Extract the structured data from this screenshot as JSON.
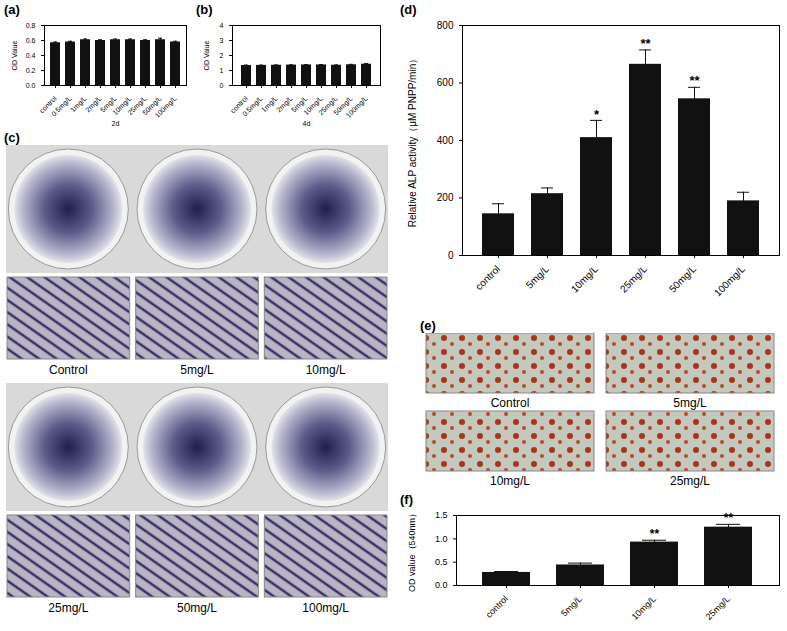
{
  "chart_data": [
    {
      "type": "bar",
      "title": "(a)",
      "xlabel": "2d",
      "ylabel": "OD Value",
      "categories": [
        "control",
        "0.5mg/L",
        "1mg/L",
        "2mg/L",
        "5mg/L",
        "10mg/L",
        "25mg/L",
        "50mg/L",
        "100mg/L"
      ],
      "values": [
        0.57,
        0.58,
        0.61,
        0.6,
        0.61,
        0.61,
        0.6,
        0.61,
        0.58
      ],
      "errors": [
        0.01,
        0.01,
        0.01,
        0.01,
        0.01,
        0.01,
        0.01,
        0.02,
        0.01
      ],
      "color": "#111111",
      "ylim": [
        0,
        0.8
      ],
      "yticks": [
        {
          "value": 0,
          "label": "0.0"
        },
        {
          "value": 0.2,
          "label": "0.2"
        },
        {
          "value": 0.4,
          "label": "0.4"
        },
        {
          "value": 0.6,
          "label": "0.6"
        },
        {
          "value": 0.8,
          "label": "0.8"
        }
      ]
    },
    {
      "type": "bar",
      "title": "(b)",
      "xlabel": "4d",
      "ylabel": "OD Value",
      "categories": [
        "control",
        "0.5mg/L",
        "1mg/L",
        "2mg/L",
        "5mg/L",
        "10mg/L",
        "25mg/L",
        "50mg/L",
        "100mg/L"
      ],
      "values": [
        1.33,
        1.34,
        1.35,
        1.36,
        1.37,
        1.37,
        1.35,
        1.38,
        1.42
      ],
      "errors": [
        0.03,
        0.02,
        0.02,
        0.02,
        0.02,
        0.03,
        0.02,
        0.03,
        0.04
      ],
      "color": "#111111",
      "ylim": [
        0,
        4
      ],
      "yticks": [
        0,
        1,
        2,
        3,
        4
      ]
    },
    {
      "type": "bar",
      "title": "(d)",
      "ylabel": "Relative ALP activity（μM PNPP/min）",
      "categories": [
        "control",
        "5mg/L",
        "10mg/L",
        "25mg/L",
        "50mg/L",
        "100mg/L"
      ],
      "values": [
        145,
        215,
        410,
        665,
        545,
        190
      ],
      "errors": [
        35,
        20,
        60,
        50,
        40,
        30
      ],
      "annotations": [
        null,
        null,
        "*",
        "**",
        "**",
        null
      ],
      "color": "#111111",
      "ylim": [
        0,
        800
      ],
      "yticks": [
        0,
        200,
        400,
        600,
        800
      ]
    },
    {
      "type": "bar",
      "title": "(f)",
      "ylabel": "OD value（540nm）",
      "categories": [
        "control",
        "5mg/L",
        "10mg/L",
        "25mg/L"
      ],
      "values": [
        0.28,
        0.44,
        0.93,
        1.25
      ],
      "errors": [
        0.02,
        0.04,
        0.04,
        0.06
      ],
      "annotations": [
        null,
        null,
        "**",
        "**"
      ],
      "color": "#111111",
      "ylim": [
        0,
        1.5
      ],
      "yticks": [
        {
          "value": 0,
          "label": "0.0"
        },
        {
          "value": 0.5,
          "label": "0.5"
        },
        {
          "value": 1,
          "label": "1.0"
        },
        {
          "value": 1.5,
          "label": "1.5"
        }
      ]
    }
  ],
  "photo_panels": [
    {
      "title": "(c)",
      "labels": [
        "Control",
        "5mg/L",
        "10mg/L",
        "25mg/L",
        "50mg/L",
        "100mg/L"
      ]
    },
    {
      "title": "(e)",
      "labels": [
        "Control",
        "5mg/L",
        "10mg/L",
        "25mg/L"
      ]
    }
  ]
}
